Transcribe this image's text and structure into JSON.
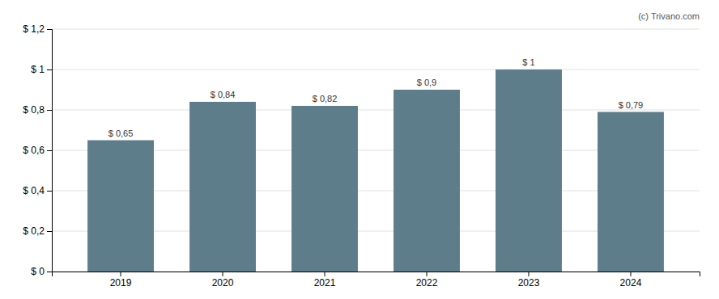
{
  "chart_data": {
    "type": "bar",
    "categories": [
      "2019",
      "2020",
      "2021",
      "2022",
      "2023",
      "2024"
    ],
    "values": [
      0.65,
      0.84,
      0.82,
      0.9,
      1.0,
      0.79
    ],
    "value_labels": [
      "$ 0,65",
      "$ 0,84",
      "$ 0,82",
      "$ 0,9",
      "$ 1",
      "$ 0,79"
    ],
    "data_labels": true,
    "color": "#5e7d8a",
    "ylim": [
      0,
      1.2
    ],
    "yticks": [
      {
        "value": 0,
        "label": "$ 0"
      },
      {
        "value": 0.2,
        "label": "$ 0,2"
      },
      {
        "value": 0.4,
        "label": "$ 0,4"
      },
      {
        "value": 0.6,
        "label": "$ 0,6"
      },
      {
        "value": 0.8,
        "label": "$ 0,8"
      },
      {
        "value": 1.0,
        "label": "$ 1"
      },
      {
        "value": 1.2,
        "label": "$ 1,2"
      }
    ],
    "grid": true,
    "annotations": [
      "(c) Trivano.com"
    ]
  }
}
